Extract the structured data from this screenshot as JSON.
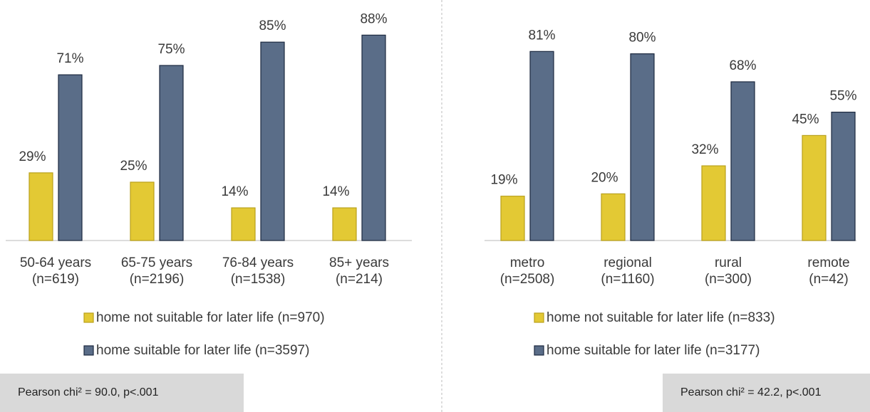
{
  "chart_data": [
    {
      "type": "bar",
      "categories": [
        [
          "50-64 years",
          "(n=619)"
        ],
        [
          "65-75 years",
          "(n=2196)"
        ],
        [
          "76-84 years",
          "(n=1538)"
        ],
        [
          "85+ years",
          "(n=214)"
        ]
      ],
      "ylim": [
        0,
        100
      ],
      "series": [
        {
          "name": "home not suitable for later life (n=970)",
          "color": "#e3c934",
          "values": [
            29,
            25,
            14,
            14
          ],
          "value_labels": [
            "29%",
            "25%",
            "14%",
            "14%"
          ]
        },
        {
          "name": "home suitable for later life (n=3597)",
          "color": "#5a6d88",
          "values": [
            71,
            75,
            85,
            88
          ],
          "value_labels": [
            "71%",
            "75%",
            "85%",
            "88%"
          ]
        }
      ],
      "annotation": "Pearson chi² = 90.0, p<.001"
    },
    {
      "type": "bar",
      "categories": [
        [
          "metro",
          "(n=2508)"
        ],
        [
          "regional",
          "(n=1160)"
        ],
        [
          "rural",
          "(n=300)"
        ],
        [
          "remote",
          "(n=42)"
        ]
      ],
      "ylim": [
        0,
        100
      ],
      "series": [
        {
          "name": "home not suitable for later life (n=833)",
          "color": "#e3c934",
          "values": [
            19,
            20,
            32,
            45
          ],
          "value_labels": [
            "19%",
            "20%",
            "32%",
            "45%"
          ]
        },
        {
          "name": "home suitable for later life (n=3177)",
          "color": "#5a6d88",
          "values": [
            81,
            80,
            68,
            55
          ],
          "value_labels": [
            "81%",
            "80%",
            "68%",
            "55%"
          ]
        }
      ],
      "annotation": "Pearson chi² = 42.2, p<.001"
    }
  ]
}
